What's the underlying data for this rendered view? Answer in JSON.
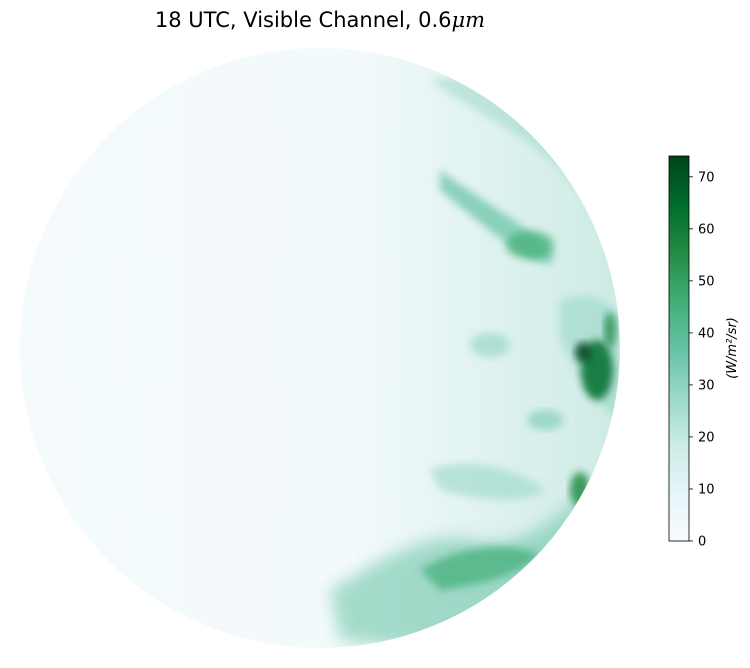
{
  "chart_data": {
    "type": "heatmap",
    "title": {
      "prefix": "18 UTC, Visible Channel, 0.6",
      "unit": "μm"
    },
    "projection": "geostationary full disk",
    "colormap": "BuGn",
    "colormap_stops": [
      "#f7fcfd",
      "#e5f5f9",
      "#ccece6",
      "#99d8c9",
      "#66c2a4",
      "#41ae76",
      "#238b45",
      "#006d2c",
      "#00441b"
    ],
    "colorbar": {
      "label": "(W/m²/sr)",
      "range": [
        0,
        74
      ],
      "ticks": [
        0,
        10,
        20,
        30,
        40,
        50,
        60,
        70
      ],
      "tick_labels": [
        "0",
        "10",
        "20",
        "30",
        "40",
        "50",
        "60",
        "70"
      ],
      "position": "right"
    },
    "features": [
      {
        "region": "western hemisphere of disk",
        "value": 1
      },
      {
        "region": "eastern limb cloud band",
        "value": 25
      },
      {
        "region": "eastern limb land",
        "value": 68
      },
      {
        "region": "southern storm band",
        "value": 40
      }
    ]
  }
}
